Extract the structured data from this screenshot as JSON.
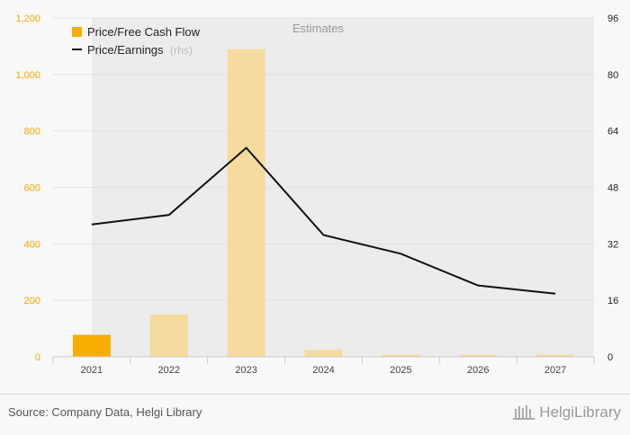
{
  "chart_data": {
    "type": "bar",
    "categories": [
      "2021",
      "2022",
      "2023",
      "2024",
      "2025",
      "2026",
      "2027"
    ],
    "series": [
      {
        "name": "Price/Free Cash Flow",
        "type": "bar",
        "axis": "left",
        "values": [
          78,
          150,
          1090,
          25,
          8,
          8,
          8
        ],
        "color": "#f7ad00",
        "estimate_color": "#f5dc9e"
      },
      {
        "name": "Price/Earnings",
        "name_suffix": "(rhs)",
        "type": "line",
        "axis": "right",
        "values": [
          37.5,
          40.2,
          59.2,
          34.5,
          29.2,
          20.2,
          17.9
        ],
        "color": "#111111"
      }
    ],
    "y_left": {
      "ylim": [
        0,
        1200
      ],
      "ticks": [
        "0",
        "200",
        "400",
        "600",
        "800",
        "1,000",
        "1,200"
      ],
      "tick_color": "#f0a800"
    },
    "y_right": {
      "ylim": [
        0,
        96
      ],
      "ticks": [
        "0",
        "16",
        "32",
        "48",
        "64",
        "80",
        "96"
      ]
    },
    "estimates": {
      "label": "Estimates",
      "from_category": "2022"
    },
    "grid": true,
    "legend_position": "top-left"
  },
  "footer": {
    "source": "Source: Company Data, Helgi Library",
    "brand": "HelgiLibrary"
  }
}
